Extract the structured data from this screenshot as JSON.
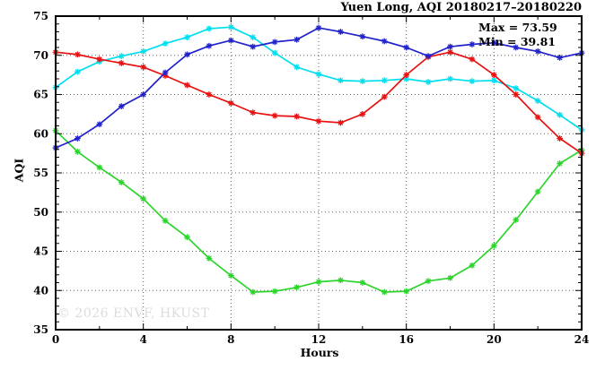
{
  "title": "Yuen Long, AQI 20180217–20180220",
  "watermark": "© 2026 ENVF, HKUST",
  "annotations": {
    "max_label": "Max = 73.59",
    "min_label": "Min = 39.81"
  },
  "axis": {
    "xlabel": "Hours",
    "ylabel": "AQI"
  },
  "chart_data": {
    "type": "line",
    "title": "Yuen Long, AQI 20180217–20180220",
    "xlabel": "Hours",
    "ylabel": "AQI",
    "xlim": [
      0,
      24
    ],
    "ylim": [
      35,
      75
    ],
    "xticks": [
      0,
      4,
      8,
      12,
      16,
      20,
      24
    ],
    "xminor_step": 2,
    "yticks": [
      35,
      40,
      45,
      50,
      55,
      60,
      65,
      70,
      75
    ],
    "yminor_step": 1,
    "grid": true,
    "legend_position": "none",
    "marker": "asterisk",
    "max_value": 73.59,
    "min_value": 39.81,
    "x": [
      0,
      1,
      2,
      3,
      4,
      5,
      6,
      7,
      8,
      9,
      10,
      11,
      12,
      13,
      14,
      15,
      16,
      17,
      18,
      19,
      20,
      21,
      22,
      23,
      24
    ],
    "series": [
      {
        "name": "green",
        "color": "#2bd52b",
        "values": [
          60.4,
          57.7,
          55.7,
          53.8,
          51.7,
          48.9,
          46.8,
          44.1,
          41.9,
          39.8,
          39.9,
          40.4,
          41.1,
          41.3,
          41.0,
          39.8,
          39.9,
          41.2,
          41.6,
          43.2,
          45.7,
          49.0,
          52.6,
          56.2,
          57.9
        ]
      },
      {
        "name": "cyan",
        "color": "#00dff0",
        "values": [
          65.9,
          67.9,
          69.2,
          69.9,
          70.5,
          71.5,
          72.3,
          73.4,
          73.6,
          72.3,
          70.3,
          68.5,
          67.6,
          66.8,
          66.7,
          66.8,
          67.0,
          66.6,
          67.0,
          66.7,
          66.8,
          65.8,
          64.2,
          62.4,
          60.5
        ]
      },
      {
        "name": "red",
        "color": "#e81010",
        "values": [
          70.4,
          70.1,
          69.5,
          69.0,
          68.5,
          67.4,
          66.2,
          65.0,
          63.9,
          62.7,
          62.3,
          62.2,
          61.6,
          61.4,
          62.5,
          64.7,
          67.5,
          69.8,
          70.4,
          69.5,
          67.5,
          65.0,
          62.1,
          59.4,
          57.5
        ]
      },
      {
        "name": "blue",
        "color": "#2222cc",
        "values": [
          58.2,
          59.4,
          61.2,
          63.5,
          65.0,
          67.8,
          70.1,
          71.2,
          71.9,
          71.1,
          71.7,
          72.0,
          73.5,
          73.0,
          72.4,
          71.8,
          71.0,
          69.9,
          71.1,
          71.4,
          71.6,
          71.0,
          70.5,
          69.7,
          70.3
        ]
      }
    ]
  },
  "style": {
    "grid_color": "#606060",
    "frame_color": "#000000"
  }
}
